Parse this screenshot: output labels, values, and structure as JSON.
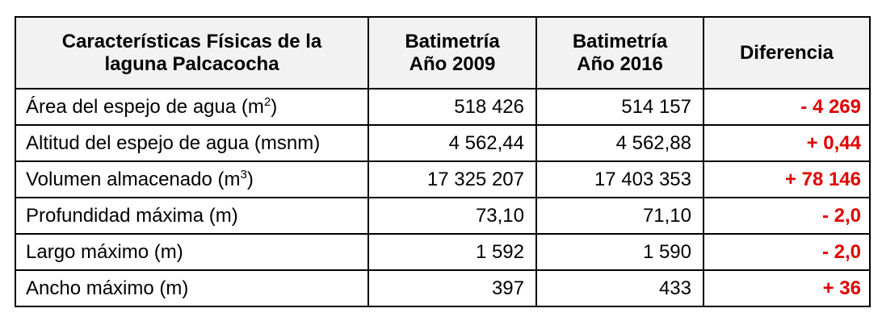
{
  "table": {
    "headers": {
      "characteristics": [
        "Características Físicas de la",
        "laguna Palcacocha"
      ],
      "bathymetry_2009": [
        "Batimetría",
        "Año 2009"
      ],
      "bathymetry_2016": [
        "Batimetría",
        "Año 2016"
      ],
      "difference": "Diferencia"
    },
    "rows": [
      {
        "label": "Área del espejo de agua (m",
        "label_sup": "2",
        "label_after": ")",
        "value_2009": "518 426",
        "value_2016": "514 157",
        "difference": "- 4 269"
      },
      {
        "label": "Altitud del espejo de agua (msnm)",
        "label_sup": "",
        "label_after": "",
        "value_2009": "4 562,44",
        "value_2016": "4 562,88",
        "difference": "+ 0,44"
      },
      {
        "label": "Volumen almacenado (m",
        "label_sup": "3",
        "label_after": ")",
        "value_2009": "17 325 207",
        "value_2016": "17 403 353",
        "difference": "+ 78 146"
      },
      {
        "label": "Profundidad máxima (m)",
        "label_sup": "",
        "label_after": "",
        "value_2009": "73,10",
        "value_2016": "71,10",
        "difference": "- 2,0"
      },
      {
        "label": "Largo máximo (m)",
        "label_sup": "",
        "label_after": "",
        "value_2009": "1 592",
        "value_2016": "1 590",
        "difference": "- 2,0"
      },
      {
        "label": "Ancho máximo (m)",
        "label_sup": "",
        "label_after": "",
        "value_2009": "397",
        "value_2016": "433",
        "difference": "+ 36"
      }
    ]
  },
  "colors": {
    "difference_text": "#e00000",
    "header_background": "#f2f2f2",
    "border": "#000000"
  }
}
